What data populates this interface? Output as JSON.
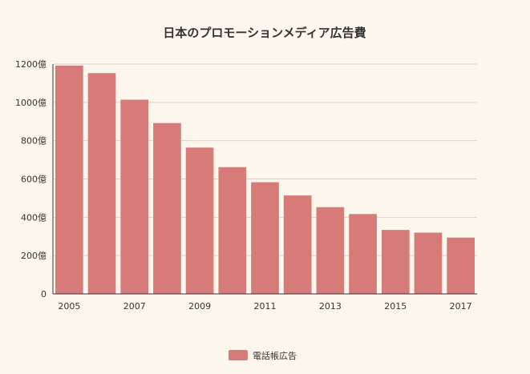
{
  "chart_data": {
    "type": "bar",
    "title": "日本のプロモーションメディア広告費",
    "xlabel": "",
    "ylabel": "",
    "categories": [
      "2005",
      "2006",
      "2007",
      "2008",
      "2009",
      "2010",
      "2011",
      "2012",
      "2013",
      "2014",
      "2015",
      "2016",
      "2017"
    ],
    "x_tick_labels": [
      "2005",
      "2007",
      "2009",
      "2011",
      "2013",
      "2015",
      "2017"
    ],
    "y_ticks": [
      0,
      200,
      400,
      600,
      800,
      1000,
      1200
    ],
    "y_tick_labels": [
      "0",
      "200億",
      "400億",
      "600億",
      "800億",
      "1000億",
      "1200億"
    ],
    "ylim": [
      0,
      1200
    ],
    "grid": true,
    "legend_position": "bottom",
    "series": [
      {
        "name": "電話帳広告",
        "color": "#d77b78",
        "values": [
          1192,
          1153,
          1014,
          892,
          764,
          662,
          583,
          514,
          453,
          417,
          334,
          320,
          294
        ]
      }
    ]
  },
  "colors": {
    "background": "#fdf6ec",
    "grid": "#d8d2ca",
    "axis": "#333333",
    "text": "#333333"
  }
}
